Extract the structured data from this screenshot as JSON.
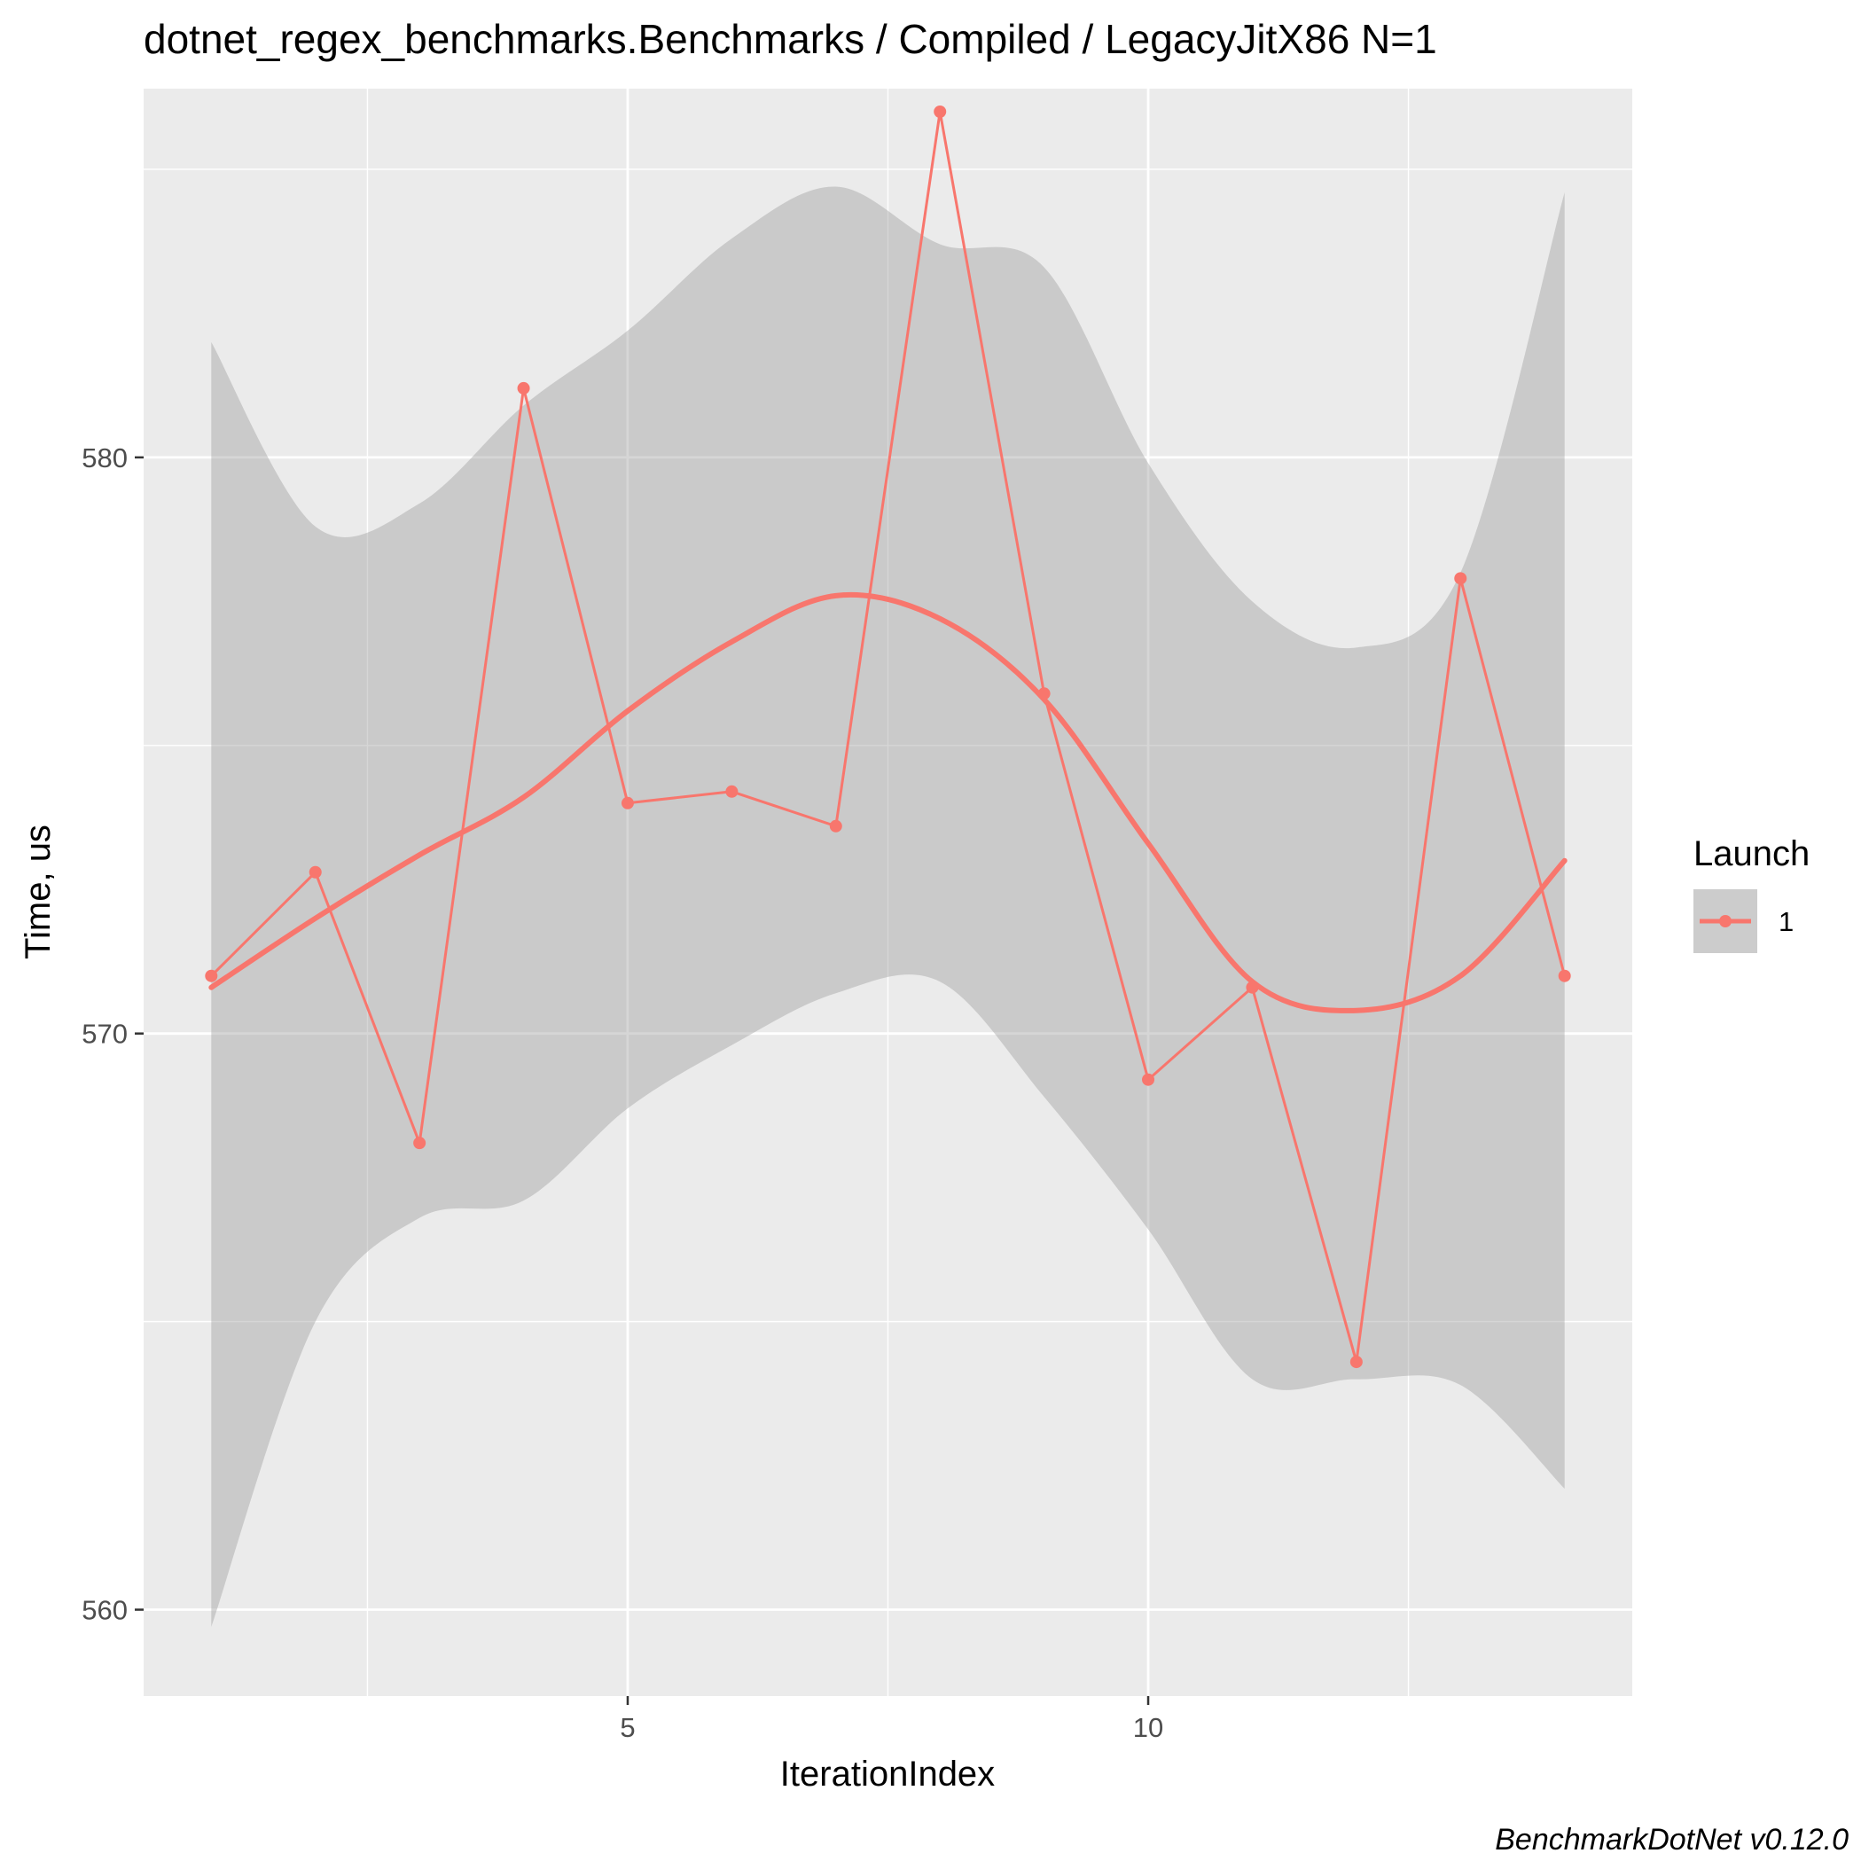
{
  "chart_data": {
    "type": "line",
    "title": "dotnet_regex_benchmarks.Benchmarks / Compiled / LegacyJitX86 N=1",
    "xlabel": "IterationIndex",
    "ylabel": "Time, us",
    "xlim": [
      0.35,
      14.65
    ],
    "ylim": [
      558.5,
      586.4
    ],
    "x_ticks": [
      5,
      10
    ],
    "x_tick_labels": [
      "5",
      "10"
    ],
    "x_minor_ticks": [
      2.5,
      7.5,
      12.5
    ],
    "y_ticks": [
      560,
      570,
      580
    ],
    "y_tick_labels": [
      "560",
      "570",
      "580"
    ],
    "y_minor_ticks": [
      565,
      575,
      585
    ],
    "grid": true,
    "legend": {
      "title": "Launch",
      "position": "right",
      "entries": [
        "1"
      ]
    },
    "caption": "BenchmarkDotNet v0.12.0",
    "colors": {
      "series": "#F8766D",
      "ribbon": "#999999",
      "panel": "#EBEBEB",
      "grid": "#FFFFFF"
    },
    "series": [
      {
        "name": "1",
        "x": [
          1,
          2,
          3,
          4,
          5,
          6,
          7,
          8,
          9,
          10,
          11,
          12,
          13,
          14
        ],
        "values": [
          571.0,
          572.8,
          568.1,
          581.2,
          574.0,
          574.2,
          573.6,
          586.0,
          575.9,
          569.2,
          570.8,
          564.3,
          577.9,
          571.0
        ]
      }
    ],
    "smooth": {
      "x": [
        1,
        2,
        3,
        4,
        5,
        6,
        7,
        8,
        9,
        10,
        11,
        12,
        13,
        14
      ],
      "values": [
        570.8,
        572.0,
        573.1,
        574.1,
        575.6,
        576.8,
        577.6,
        577.2,
        575.8,
        573.3,
        570.9,
        570.4,
        571.0,
        573.0
      ],
      "ci_lower": [
        559.7,
        565.0,
        566.8,
        567.1,
        568.7,
        569.8,
        570.7,
        570.9,
        568.9,
        566.6,
        564.0,
        564.0,
        563.9,
        562.1
      ],
      "ci_upper": [
        582.0,
        578.8,
        579.2,
        580.9,
        582.2,
        583.8,
        584.7,
        583.7,
        583.3,
        579.9,
        577.5,
        576.7,
        578.0,
        584.6
      ]
    }
  }
}
